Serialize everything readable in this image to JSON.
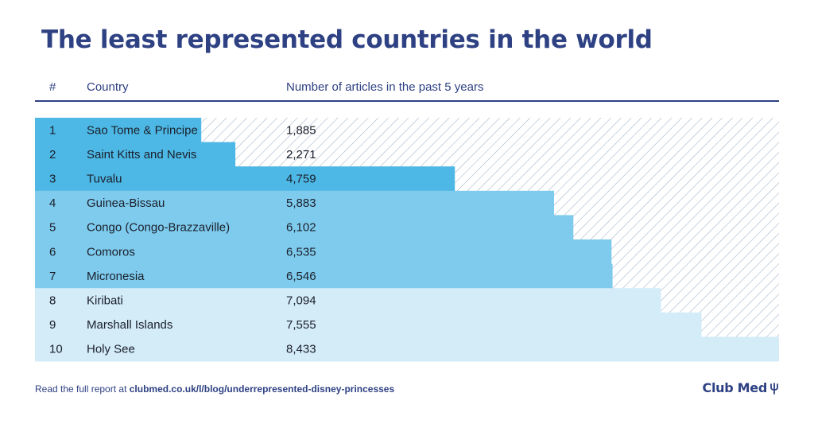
{
  "title": "The least represented countries in the world",
  "chart_data": {
    "type": "bar",
    "orientation": "horizontal",
    "columns": {
      "rank": "#",
      "country": "Country",
      "value": "Number of articles in the past 5 years"
    },
    "categories": [
      "Sao Tome & Principe",
      "Saint Kitts and Nevis",
      "Tuvalu",
      "Guinea-Bissau",
      "Congo (Congo-Brazzaville)",
      "Comoros",
      "Micronesia",
      "Kiribati",
      "Marshall Islands",
      "Holy See"
    ],
    "ranks": [
      "1",
      "2",
      "3",
      "4",
      "5",
      "6",
      "7",
      "8",
      "9",
      "10"
    ],
    "values": [
      1885,
      2271,
      4759,
      5883,
      6102,
      6535,
      6546,
      7094,
      7555,
      8433
    ],
    "value_labels": [
      "1,885",
      "2,271",
      "4,759",
      "5,883",
      "6,102",
      "6,535",
      "6,546",
      "7,094",
      "7,555",
      "8,433"
    ],
    "xlim": [
      0,
      8433
    ],
    "colors": [
      "#4db8e5",
      "#4db8e5",
      "#4db8e5",
      "#7ecbee",
      "#7ecbee",
      "#7ecbee",
      "#7ecbee",
      "#d3ecf8",
      "#d3ecf8",
      "#d3ecf8"
    ],
    "hatch_color": "#9eb0c6",
    "grid": false,
    "legend": "none"
  },
  "footer": {
    "prefix": "Read the full report at ",
    "link": "clubmed.co.uk/l/blog/underrepresented-disney-princesses"
  },
  "brand": {
    "name": "Club Med",
    "icon": "trident-icon"
  }
}
